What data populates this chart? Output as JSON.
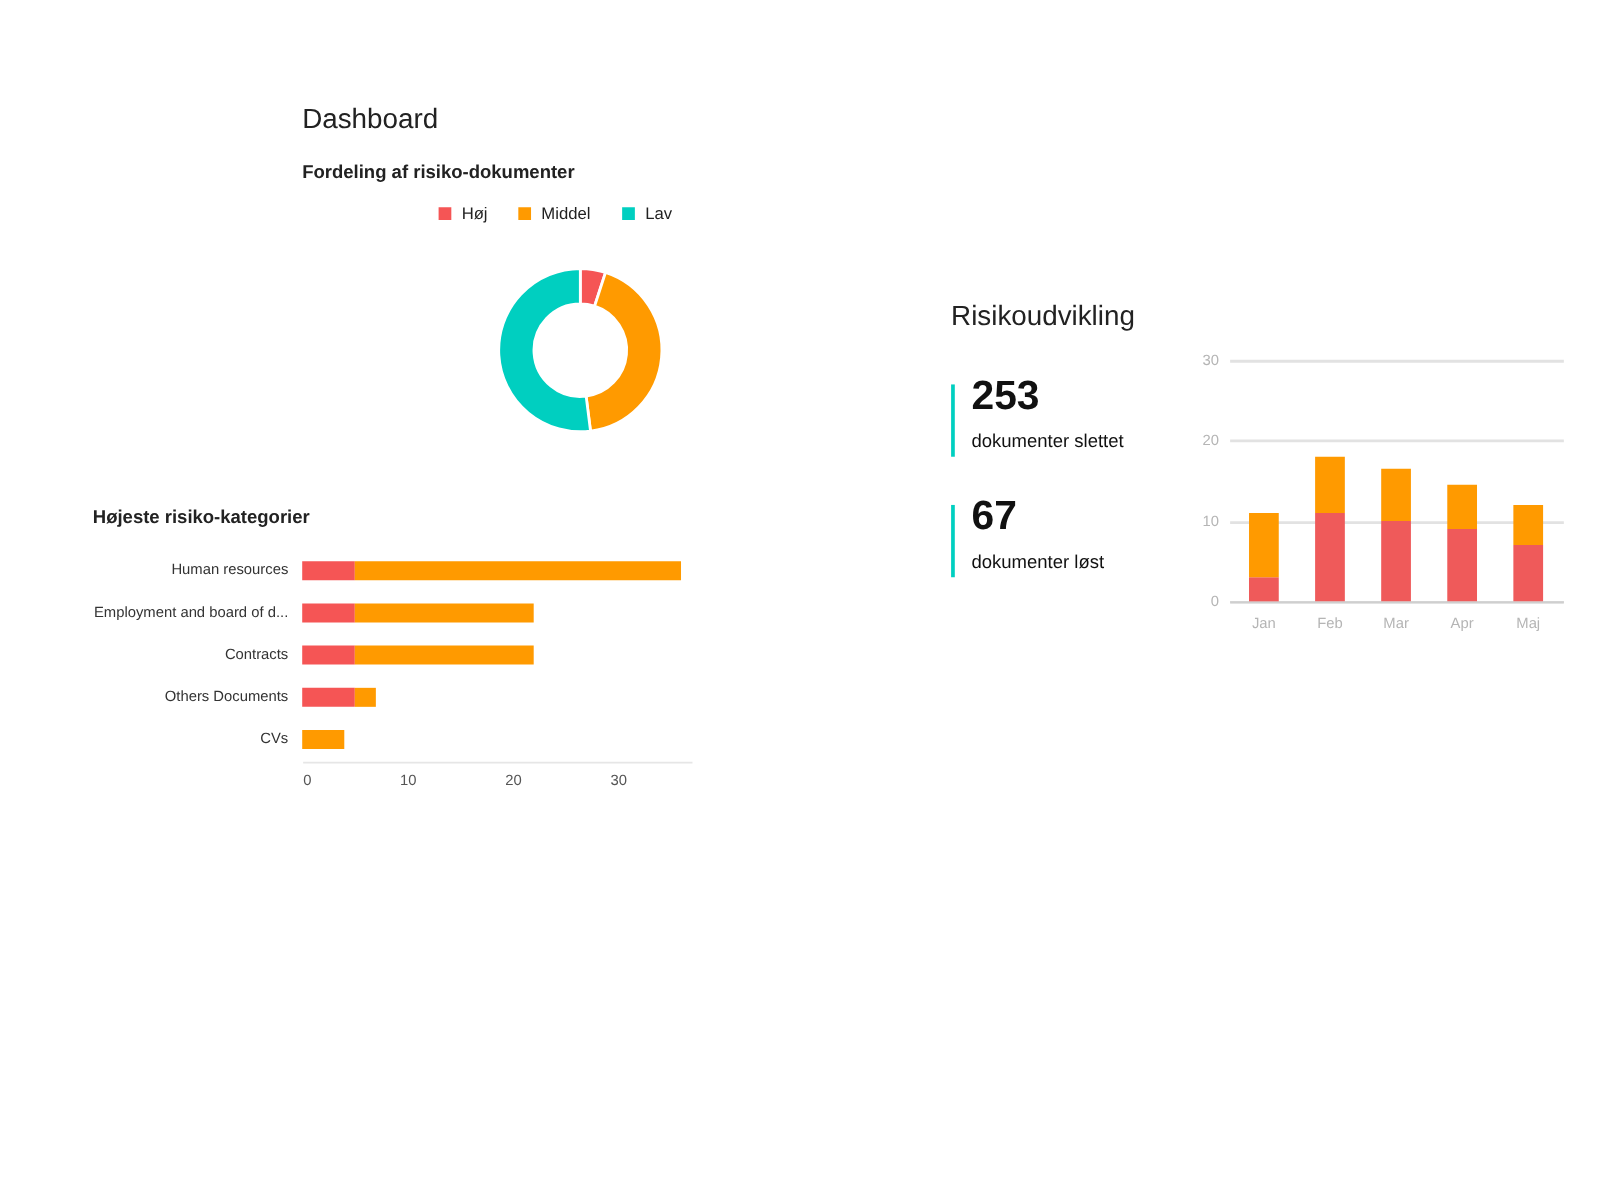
{
  "chart_data": [
    {
      "type": "donut",
      "title": "Dashboard",
      "subtitle": "Fordeling af risiko-dokumenter",
      "categories": [
        "Høj",
        "Middel",
        "Lav"
      ],
      "values": [
        5,
        43,
        52
      ],
      "colors": [
        "#f55555",
        "#ff9a00",
        "#00cfc0"
      ],
      "legend": "top"
    },
    {
      "type": "bar",
      "orientation": "horizontal",
      "stacked": true,
      "title": "Højeste risiko-kategorier",
      "categories": [
        "Human resources",
        "Employment and board of d...",
        "Contracts",
        "Others Documents",
        "CVs"
      ],
      "series": [
        {
          "color": "#f55555",
          "values": [
            5,
            5,
            5,
            5,
            null
          ]
        },
        {
          "color": "#ff9a00",
          "values": [
            31,
            17,
            17,
            2,
            4
          ]
        }
      ],
      "xlim": [
        0,
        37
      ],
      "xticks": [
        0,
        10,
        20,
        30
      ]
    },
    {
      "type": "other",
      "categories": [
        "dokumenter slettet",
        "dokumenter løst"
      ],
      "values": [
        253,
        67
      ],
      "colors": [
        "#00cfc0",
        "#00cfc0"
      ],
      "data_labels": true
    },
    {
      "type": "bar",
      "stacked": true,
      "title": "Risikoudvikling",
      "categories": [
        "Jan",
        "Feb",
        "Mar",
        "Apr",
        "Maj"
      ],
      "series": [
        {
          "color": "#ef5a5a",
          "values": [
            3,
            11,
            10,
            9,
            7
          ]
        },
        {
          "color": "#ff9a00",
          "values": [
            8,
            7,
            6.5,
            5.5,
            5
          ]
        }
      ],
      "ylim": [
        0,
        30
      ],
      "yticks": [
        0,
        10,
        20,
        30
      ],
      "grid": "y"
    }
  ]
}
